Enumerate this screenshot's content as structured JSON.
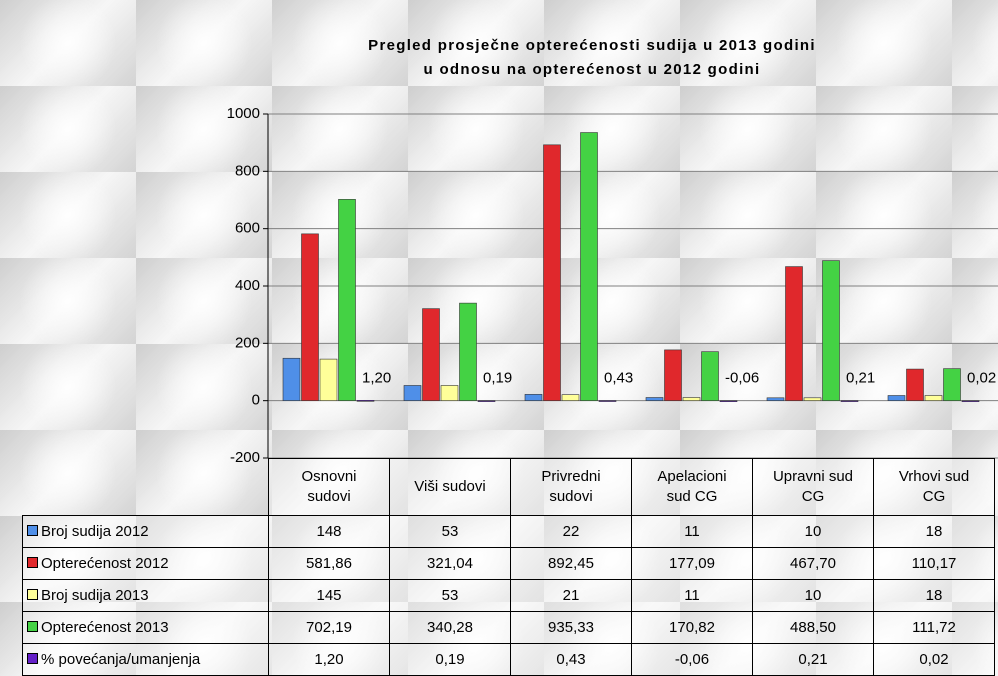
{
  "chart_data": {
    "type": "bar",
    "title": "Pregled prosječne opterećenosti sudija u 2013 godini",
    "subtitle": "u odnosu na opterećenost u 2012 godini",
    "categories": [
      "Osnovni sudovi",
      "Viši sudovi",
      "Privredni sudovi",
      "Apelacioni sud CG",
      "Upravni sud CG",
      "Vrhovi sud CG"
    ],
    "series": [
      {
        "name": "Broj sudija 2012",
        "color": "#4f8fe8",
        "values": [
          148,
          53,
          22,
          11,
          10,
          18
        ]
      },
      {
        "name": "Opterećenost 2012",
        "color": "#e0282c",
        "values": [
          581.86,
          321.04,
          892.45,
          177.09,
          467.7,
          110.17
        ],
        "value_labels": [
          "581,86",
          "321,04",
          "892,45",
          "177,09",
          "467,70",
          "110,17"
        ]
      },
      {
        "name": "Broj sudija 2013",
        "color": "#ffff99",
        "values": [
          145,
          53,
          21,
          11,
          10,
          18
        ]
      },
      {
        "name": "Opterećenost 2013",
        "color": "#44d244",
        "values": [
          702.19,
          340.28,
          935.33,
          170.82,
          488.5,
          111.72
        ],
        "value_labels": [
          "702,19",
          "340,28",
          "935,33",
          "170,82",
          "488,50",
          "111,72"
        ]
      },
      {
        "name": "% povećanja/umanjenja",
        "color": "#6420c8",
        "values": [
          1.2,
          0.19,
          0.43,
          -0.06,
          0.21,
          0.02
        ],
        "value_labels": [
          "1,20",
          "0,19",
          "0,43",
          "-0,06",
          "0,21",
          "0,02"
        ],
        "show_labels": true
      }
    ],
    "ylim": [
      -200,
      1000
    ],
    "yticks": [
      -200,
      0,
      200,
      400,
      600,
      800,
      1000
    ],
    "grid": true
  }
}
